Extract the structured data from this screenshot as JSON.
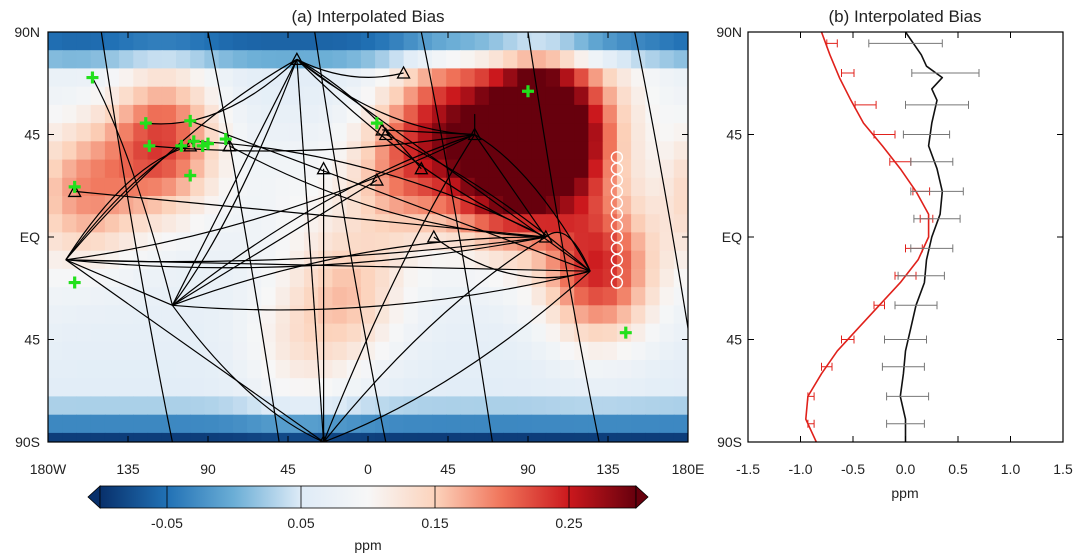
{
  "chart_data": [
    {
      "type": "heatmap",
      "title": "(a) Interpolated Bias",
      "x_tick_labels": [
        "180W",
        "135",
        "90",
        "45",
        "0",
        "45",
        "90",
        "135",
        "180E"
      ],
      "x_ticks_lon": [
        -180,
        -135,
        -90,
        -45,
        0,
        45,
        90,
        135,
        180
      ],
      "y_tick_labels": [
        "90N",
        "45",
        "EQ",
        "45",
        "90S"
      ],
      "y_ticks_lat": [
        90,
        45,
        0,
        -45,
        -90
      ],
      "xlim": [
        -180,
        180
      ],
      "ylim": [
        -90,
        90
      ],
      "colorbar": {
        "tick_labels": [
          "-0.05",
          "0.05",
          "0.15",
          "0.25"
        ],
        "ticks": [
          -0.05,
          0.05,
          0.15,
          0.25
        ],
        "range": [
          -0.1,
          0.3
        ],
        "label": "ppm",
        "colors": [
          "#08306b",
          "#2171b5",
          "#6baed6",
          "#deebf7",
          "#f7f7f7",
          "#fcd3bc",
          "#f0745a",
          "#cb181d",
          "#67000d"
        ]
      },
      "bias_hotspots": [
        {
          "lon": 95,
          "lat": 55,
          "value": 0.26
        },
        {
          "lon": 75,
          "lat": 28,
          "value": 0.25
        },
        {
          "lon": 110,
          "lat": 40,
          "value": 0.22
        },
        {
          "lon": -115,
          "lat": 42,
          "value": 0.21
        },
        {
          "lon": 130,
          "lat": -15,
          "value": 0.22
        },
        {
          "lon": 45,
          "lat": 55,
          "value": 0.18
        },
        {
          "lon": 20,
          "lat": 30,
          "value": 0.16
        },
        {
          "lon": -160,
          "lat": 20,
          "value": 0.16
        },
        {
          "lon": -10,
          "lat": -25,
          "value": 0.13
        },
        {
          "lon": -40,
          "lat": -50,
          "value": 0.1
        },
        {
          "lon": 150,
          "lat": 70,
          "value": 0.08
        },
        {
          "lon": -40,
          "lat": 20,
          "value": 0.07
        }
      ],
      "green_sites": [
        {
          "lon": -155,
          "lat": 70
        },
        {
          "lon": -125,
          "lat": 50
        },
        {
          "lon": -123,
          "lat": 40
        },
        {
          "lon": -100,
          "lat": 51
        },
        {
          "lon": -105,
          "lat": 40
        },
        {
          "lon": -98,
          "lat": 42
        },
        {
          "lon": -93,
          "lat": 40
        },
        {
          "lon": -90,
          "lat": 41
        },
        {
          "lon": -100,
          "lat": 27
        },
        {
          "lon": -80,
          "lat": 43
        },
        {
          "lon": -165,
          "lat": 22
        },
        {
          "lon": -165,
          "lat": -20
        },
        {
          "lon": 5,
          "lat": 50
        },
        {
          "lon": 90,
          "lat": 64
        },
        {
          "lon": 145,
          "lat": -42
        }
      ],
      "triangle_sites": [
        {
          "lon": -40,
          "lat": 78
        },
        {
          "lon": 20,
          "lat": 72
        },
        {
          "lon": 8,
          "lat": 47
        },
        {
          "lon": 10,
          "lat": 45
        },
        {
          "lon": -100,
          "lat": 40
        },
        {
          "lon": -78,
          "lat": 40
        },
        {
          "lon": -25,
          "lat": 30
        },
        {
          "lon": 5,
          "lat": 25
        },
        {
          "lon": 30,
          "lat": 30
        },
        {
          "lon": 60,
          "lat": 45
        },
        {
          "lon": 37,
          "lat": 0
        },
        {
          "lon": 100,
          "lat": 0
        },
        {
          "lon": -165,
          "lat": 20
        },
        {
          "lon": -25,
          "lat": -90
        }
      ],
      "ship_track": [
        {
          "lon": 140,
          "lat": 35
        },
        {
          "lon": 140,
          "lat": 30
        },
        {
          "lon": 140,
          "lat": 25
        },
        {
          "lon": 140,
          "lat": 20
        },
        {
          "lon": 140,
          "lat": 15
        },
        {
          "lon": 140,
          "lat": 10
        },
        {
          "lon": 140,
          "lat": 5
        },
        {
          "lon": 140,
          "lat": 0
        },
        {
          "lon": 140,
          "lat": -5
        },
        {
          "lon": 140,
          "lat": -10
        },
        {
          "lon": 140,
          "lat": -15
        },
        {
          "lon": 140,
          "lat": -20
        }
      ]
    },
    {
      "type": "line",
      "title": "(b) Interpolated Bias",
      "xlabel": "ppm",
      "x_tick_labels": [
        "-1.5",
        "-1.0",
        "-0.5",
        "0.0",
        "0.5",
        "1.0",
        "1.5"
      ],
      "x_ticks": [
        -1.5,
        -1.0,
        -0.5,
        0.0,
        0.5,
        1.0,
        1.5
      ],
      "y_tick_labels": [
        "90N",
        "45",
        "EQ",
        "45",
        "90S"
      ],
      "y_ticks_lat": [
        90,
        45,
        0,
        -45,
        -90
      ],
      "xlim": [
        -1.5,
        1.5
      ],
      "ylim": [
        -90,
        90
      ],
      "series": [
        {
          "color": "#e0211b",
          "lat": [
            90,
            80,
            70,
            60,
            50,
            40,
            30,
            20,
            10,
            0,
            -10,
            -20,
            -30,
            -40,
            -50,
            -60,
            -70,
            -80,
            -90
          ],
          "values": [
            -0.8,
            -0.72,
            -0.63,
            -0.52,
            -0.4,
            -0.22,
            -0.05,
            0.1,
            0.22,
            0.22,
            0.12,
            -0.05,
            -0.25,
            -0.45,
            -0.65,
            -0.8,
            -0.93,
            -0.95,
            -0.85
          ],
          "error_bars": [
            {
              "lat": 85,
              "center": -0.7,
              "halfwidth": 0.05
            },
            {
              "lat": 72,
              "center": -0.55,
              "halfwidth": 0.06
            },
            {
              "lat": 58,
              "center": -0.38,
              "halfwidth": 0.1
            },
            {
              "lat": 45,
              "center": -0.2,
              "halfwidth": 0.1
            },
            {
              "lat": 33,
              "center": -0.05,
              "halfwidth": 0.1
            },
            {
              "lat": 20,
              "center": 0.15,
              "halfwidth": 0.08
            },
            {
              "lat": 8,
              "center": 0.2,
              "halfwidth": 0.06
            },
            {
              "lat": -5,
              "center": 0.08,
              "halfwidth": 0.08
            },
            {
              "lat": -17,
              "center": 0.0,
              "halfwidth": 0.1
            },
            {
              "lat": -30,
              "center": -0.25,
              "halfwidth": 0.05
            },
            {
              "lat": -45,
              "center": -0.55,
              "halfwidth": 0.06
            },
            {
              "lat": -57,
              "center": -0.75,
              "halfwidth": 0.05
            },
            {
              "lat": -70,
              "center": -0.9,
              "halfwidth": 0.03
            },
            {
              "lat": -82,
              "center": -0.9,
              "halfwidth": 0.03
            }
          ]
        },
        {
          "color": "#111111",
          "lat": [
            90,
            80,
            75,
            70,
            65,
            60,
            50,
            40,
            30,
            20,
            10,
            0,
            -10,
            -20,
            -30,
            -40,
            -50,
            -60,
            -70,
            -80,
            -90
          ],
          "values": [
            0.0,
            0.15,
            0.2,
            0.35,
            0.25,
            0.3,
            0.25,
            0.22,
            0.3,
            0.35,
            0.33,
            0.25,
            0.2,
            0.18,
            0.1,
            0.05,
            0.0,
            -0.02,
            -0.05,
            0.0,
            0.0
          ],
          "error_bars": [
            {
              "lat": 85,
              "center": 0.0,
              "halfwidth": 0.35
            },
            {
              "lat": 72,
              "center": 0.38,
              "halfwidth": 0.32
            },
            {
              "lat": 58,
              "center": 0.3,
              "halfwidth": 0.3
            },
            {
              "lat": 45,
              "center": 0.2,
              "halfwidth": 0.22
            },
            {
              "lat": 33,
              "center": 0.25,
              "halfwidth": 0.2
            },
            {
              "lat": 20,
              "center": 0.3,
              "halfwidth": 0.25
            },
            {
              "lat": 8,
              "center": 0.3,
              "halfwidth": 0.22
            },
            {
              "lat": -5,
              "center": 0.25,
              "halfwidth": 0.2
            },
            {
              "lat": -17,
              "center": 0.15,
              "halfwidth": 0.22
            },
            {
              "lat": -30,
              "center": 0.1,
              "halfwidth": 0.2
            },
            {
              "lat": -45,
              "center": 0.0,
              "halfwidth": 0.2
            },
            {
              "lat": -57,
              "center": -0.02,
              "halfwidth": 0.2
            },
            {
              "lat": -70,
              "center": 0.02,
              "halfwidth": 0.2
            },
            {
              "lat": -82,
              "center": 0.0,
              "halfwidth": 0.18
            }
          ]
        }
      ]
    }
  ]
}
